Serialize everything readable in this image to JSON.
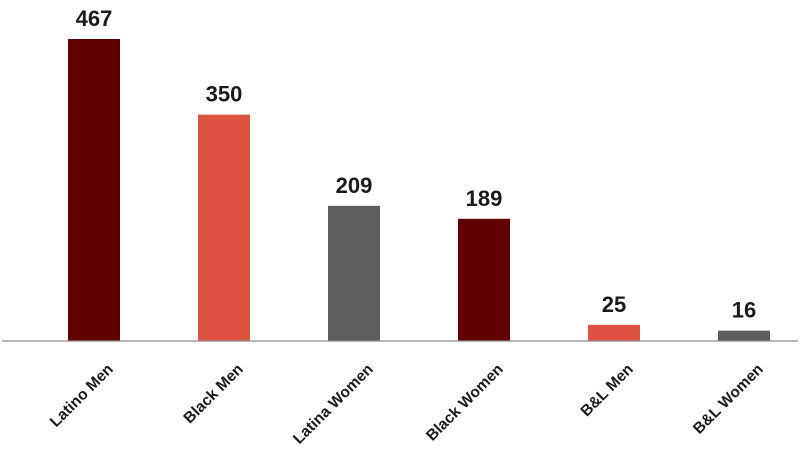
{
  "chart_data": {
    "type": "bar",
    "title": "",
    "xlabel": "",
    "ylabel": "",
    "categories": [
      "Latino Men",
      "Black Men",
      "Latina Women",
      "Black Women",
      "B&L Men",
      "B&L Women"
    ],
    "values": [
      467,
      350,
      209,
      189,
      25,
      16
    ],
    "colors": [
      "#600000",
      "#dd5241",
      "#5d5d5d",
      "#600000",
      "#dd5241",
      "#5d5d5d"
    ],
    "ylim": [
      0,
      467
    ],
    "grid": false,
    "legend": "none",
    "data_labels": true
  }
}
